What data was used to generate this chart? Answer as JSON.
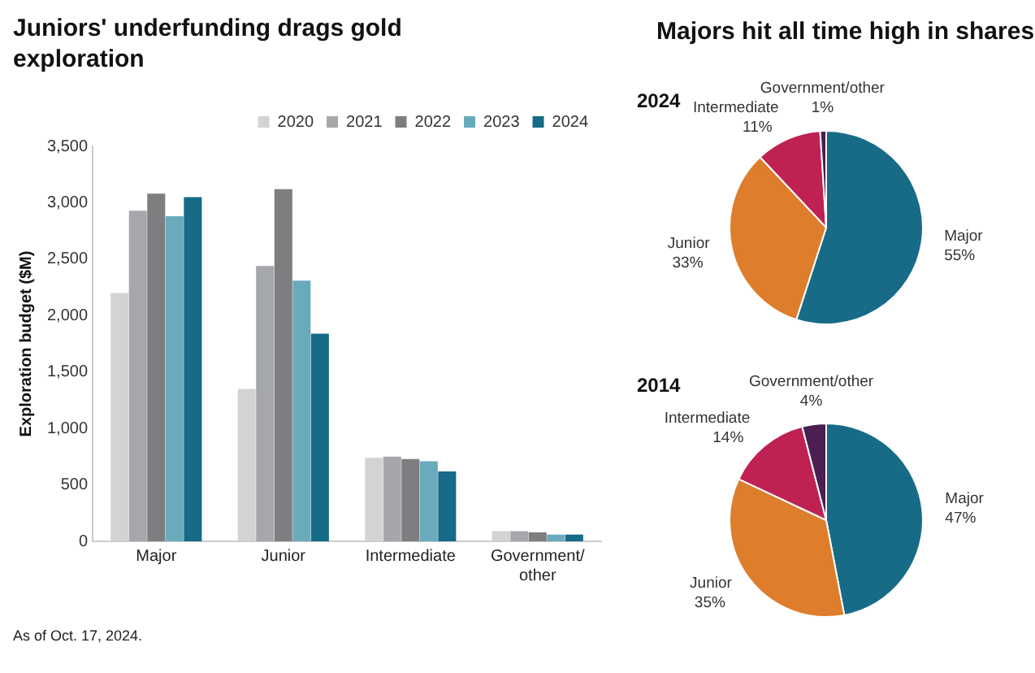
{
  "chart_data": [
    {
      "type": "bar",
      "title": "Juniors' underfunding drags gold exploration",
      "ylabel": "Exploration budget ($M)",
      "categories": [
        "Major",
        "Junior",
        "Intermediate",
        "Government/other"
      ],
      "series": [
        {
          "name": "2020",
          "color": "#d2d3d5",
          "values": [
            2200,
            1350,
            740,
            90
          ]
        },
        {
          "name": "2021",
          "color": "#a5a7aa",
          "values": [
            2930,
            2440,
            750,
            90
          ]
        },
        {
          "name": "2022",
          "color": "#7d7e80",
          "values": [
            3080,
            3120,
            730,
            80
          ]
        },
        {
          "name": "2023",
          "color": "#6aaabd",
          "values": [
            2880,
            2310,
            710,
            60
          ]
        },
        {
          "name": "2024",
          "color": "#176b87",
          "values": [
            3050,
            1840,
            620,
            60
          ]
        }
      ],
      "ylim": [
        0,
        3500
      ],
      "yticks": [
        {
          "value": 0,
          "label": "0"
        },
        {
          "value": 500,
          "label": "500"
        },
        {
          "value": 1000,
          "label": "1,000"
        },
        {
          "value": 1500,
          "label": "1,500"
        },
        {
          "value": 2000,
          "label": "2,000"
        },
        {
          "value": 2500,
          "label": "2,500"
        },
        {
          "value": 3000,
          "label": "3,000"
        },
        {
          "value": 3500,
          "label": "3,500"
        }
      ],
      "grid": false,
      "legend": "top right",
      "annotations": [
        "As of Oct. 17, 2024."
      ]
    },
    {
      "type": "pie",
      "title": "Majors hit all time high in shares",
      "subtitle": "2024",
      "categories": [
        "Major",
        "Junior",
        "Intermediate",
        "Government/other"
      ],
      "values": [
        55,
        33,
        11,
        1
      ],
      "colors": [
        "#176b87",
        "#de7d2c",
        "#bf2153",
        "#4b1f52"
      ],
      "value_labels": [
        "55%",
        "33%",
        "11%",
        "1%"
      ]
    },
    {
      "type": "pie",
      "title": "2014",
      "categories": [
        "Major",
        "Junior",
        "Intermediate",
        "Government/other"
      ],
      "values": [
        47,
        35,
        14,
        4
      ],
      "colors": [
        "#176b87",
        "#de7d2c",
        "#bf2153",
        "#4b1f52"
      ],
      "value_labels": [
        "47%",
        "35%",
        "14%",
        "4%"
      ]
    }
  ]
}
